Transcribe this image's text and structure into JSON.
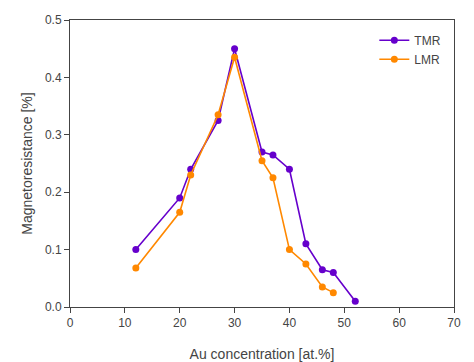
{
  "chart_data": {
    "type": "line",
    "x": [
      12,
      20,
      22,
      27,
      30,
      35,
      37,
      40,
      43,
      46,
      48,
      52
    ],
    "series": [
      {
        "name": "TMR",
        "color": "#6600CC",
        "marker": "circle",
        "values": [
          0.1,
          0.19,
          0.24,
          0.325,
          0.45,
          0.27,
          0.265,
          0.24,
          0.11,
          0.065,
          0.06,
          0.01
        ]
      },
      {
        "name": "LMR",
        "color": "#FF8800",
        "marker": "circle",
        "values": [
          0.068,
          0.165,
          0.23,
          0.335,
          0.435,
          0.255,
          0.225,
          0.1,
          0.075,
          0.035,
          0.025,
          null
        ]
      }
    ],
    "xlabel": "Au concentration [at.%]",
    "ylabel": "Magnetoresistance [%]",
    "xlim": [
      0,
      70
    ],
    "ylim": [
      0.0,
      0.5
    ],
    "xticks": [
      0,
      10,
      20,
      30,
      40,
      50,
      60,
      70
    ],
    "yticks": [
      {
        "value": 0,
        "label": "0.0"
      },
      0.1,
      0.2,
      0.3,
      0.4,
      0.5
    ],
    "grid": false,
    "legend": "upper right"
  }
}
